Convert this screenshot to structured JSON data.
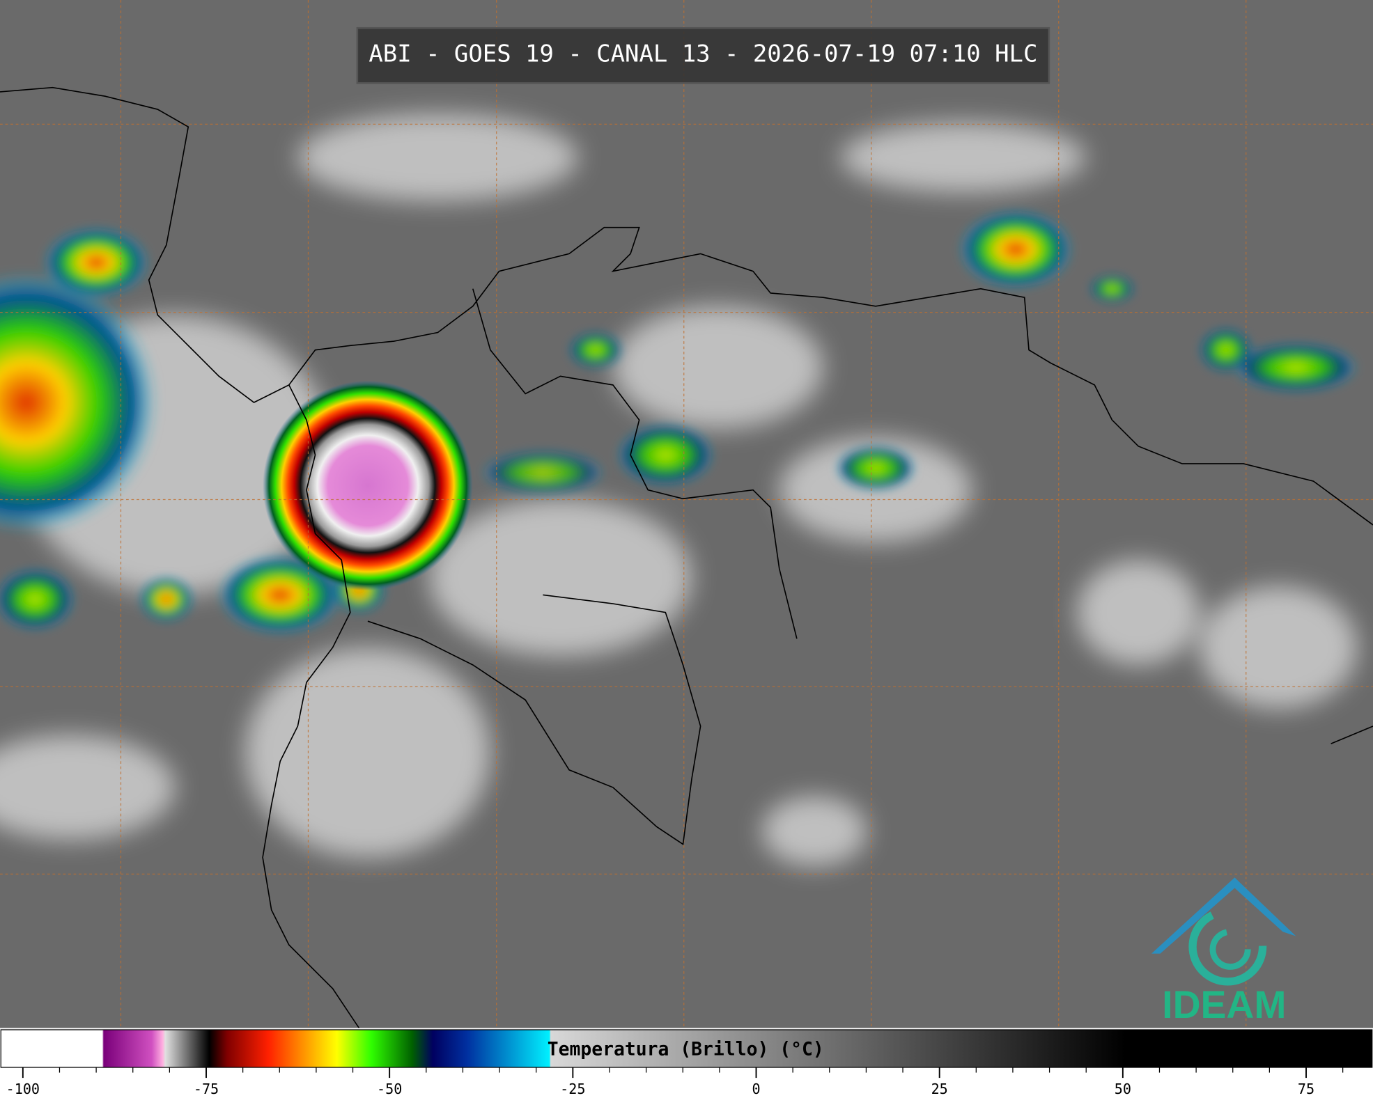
{
  "title": "ABI - GOES 19 - CANAL 13 - 2026-07-19 07:10 HLC",
  "colorbar": {
    "label": "Temperatura (Brillo) (°C)",
    "range": [
      -103,
      84
    ],
    "ticks": [
      -100,
      -75,
      -50,
      -25,
      0,
      25,
      50,
      75
    ]
  },
  "logo": "IDEAM"
}
